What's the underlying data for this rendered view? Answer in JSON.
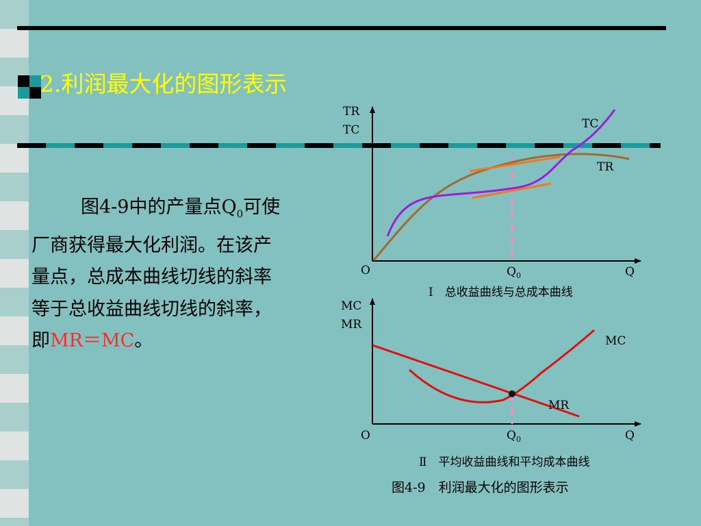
{
  "title": "2.利润最大化的图形表示",
  "paragraph": {
    "line1_pre": "图4-9中的产量点Q",
    "line1_sub": "0",
    "line1_post": "可使",
    "line2": "厂商获得最大化利润。在该产",
    "line3": "量点，总成本曲线切线的斜率",
    "line4": "等于总收益曲线切线的斜率，",
    "line5_pre": "即",
    "line5_red": "MR＝MC",
    "line5_post": "。"
  },
  "top_chart": {
    "y_label_1": "TR",
    "y_label_2": "TC",
    "origin": "O",
    "x_axis": "Q",
    "q_label": "Q",
    "q_sub": "0",
    "curve_labels": {
      "tc": "TC",
      "tr": "TR"
    },
    "caption": "Ⅰ　总收益曲线与总成本曲线"
  },
  "bottom_chart": {
    "y_label_1": "MC",
    "y_label_2": "MR",
    "origin": "O",
    "x_axis": "Q",
    "q_label": "Q",
    "q_sub": "0",
    "curve_labels": {
      "mc": "MC",
      "mr": "MR"
    },
    "caption": "Ⅱ　平均收益曲线和平均成本曲线"
  },
  "figure_caption": "图4-9　利润最大化的图形表示",
  "colors": {
    "background": "#82c1c0",
    "title": "#ffff00",
    "tc_curve": "#9a1fd6",
    "tr_curve": "#a06a30",
    "tangent": "#f07a20",
    "q0_marker": "#ff88c8",
    "mc_mr_curves": "#e01010",
    "emphasis": "#ff2a2a"
  }
}
